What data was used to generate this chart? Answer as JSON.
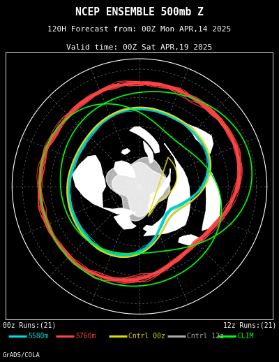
{
  "title_line1": "NCEP ENSEMBLE 500mb Z",
  "title_line2": "120H Forecast from: 00Z Mon APR,14 2025",
  "title_line3": "Valid time: 00Z Sat APR,19 2025",
  "bottom_left": "00z Runs:(21)",
  "bottom_right": "12z Runs:(21)",
  "credit": "GrADS/COLA",
  "legend_items": [
    {
      "color": "#00DDDD",
      "label": "5580m"
    },
    {
      "color": "#FF4444",
      "label": "5760m"
    },
    {
      "color": "#DDDD00",
      "label": "Cntrl 00z"
    },
    {
      "color": "#AAAAAA",
      "label": "Cntrl 12z"
    },
    {
      "color": "#00FF00",
      "label": "CLIM"
    }
  ],
  "bg_color": "#000000",
  "land_color": "#FFFFFF",
  "grid_color": "#888888",
  "title_color": "#FFFFFF",
  "text_color": "#FFFFFF",
  "cyan_color": "#00CCCC",
  "red_color": "#FF4444",
  "yellow_color": "#DDDD00",
  "gray_color": "#AAAAAA",
  "green_color": "#00FF00",
  "fig_width": 4.0,
  "fig_height": 5.18
}
